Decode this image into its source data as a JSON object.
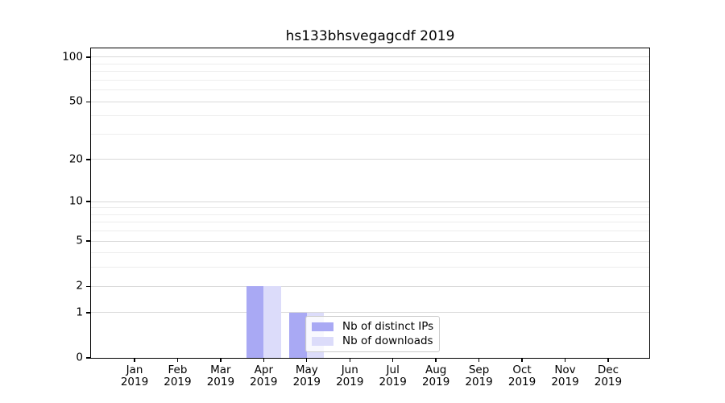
{
  "chart_data": {
    "type": "bar",
    "title": "hs133bhsvegagcdf 2019",
    "categories": [
      "Jan 2019",
      "Feb 2019",
      "Mar 2019",
      "Apr 2019",
      "May 2019",
      "Jun 2019",
      "Jul 2019",
      "Aug 2019",
      "Sep 2019",
      "Oct 2019",
      "Nov 2019",
      "Dec 2019"
    ],
    "x_tick_months": [
      "Jan",
      "Feb",
      "Mar",
      "Apr",
      "May",
      "Jun",
      "Jul",
      "Aug",
      "Sep",
      "Oct",
      "Nov",
      "Dec"
    ],
    "x_tick_year": "2019",
    "series": [
      {
        "name": "Nb of distinct IPs",
        "color": "#a9a9f4",
        "values": [
          0,
          0,
          0,
          2,
          1,
          0,
          0,
          0,
          0,
          0,
          0,
          0
        ]
      },
      {
        "name": "Nb of downloads",
        "color": "#dcdcfa",
        "values": [
          0,
          0,
          0,
          2,
          1,
          0,
          0,
          0,
          0,
          0,
          0,
          0
        ]
      }
    ],
    "yscale": "log1p",
    "y_major_ticks": [
      0,
      1,
      2,
      5,
      10,
      20,
      50,
      100
    ],
    "y_minor_ticks": [
      3,
      4,
      6,
      7,
      8,
      9,
      30,
      40,
      60,
      70,
      80,
      90
    ],
    "ylim": [
      0,
      115
    ],
    "xlabel": "",
    "ylabel": "",
    "grid": true,
    "legend_position": "inside lower center, overlapping May bars"
  },
  "colors": {
    "grid_major": "#d9d9d9",
    "grid_minor": "#ededed",
    "axis": "#000000",
    "background": "#ffffff"
  }
}
